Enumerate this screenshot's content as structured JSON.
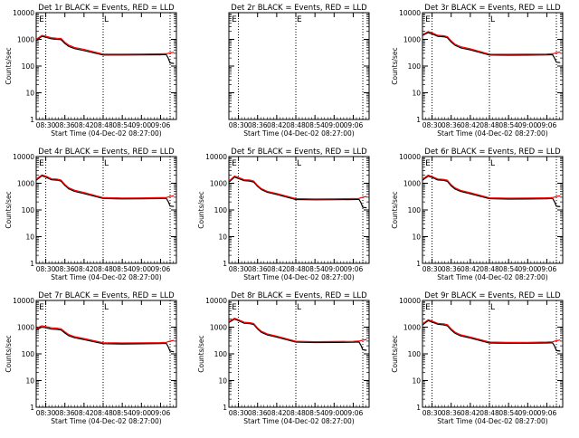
{
  "figure": {
    "xlabel": "Start Time (04-Dec-02 08:27:00)",
    "ylabel": "Counts/sec",
    "colors": {
      "events": "#000000",
      "lld": "#ff0000",
      "axis": "#000000",
      "background": "#ffffff"
    }
  },
  "chart_data": [
    {
      "type": "line",
      "title": "Det 1r BLACK = Events, RED = LLD",
      "xlabel": "Start Time (04-Dec-02 08:27:00)",
      "ylabel": "Counts/sec",
      "yscale": "log",
      "ylim": [
        1,
        10000
      ],
      "xlim": [
        8.45,
        9.183
      ],
      "xtick_labels": [
        "08:30",
        "08:36",
        "08:42",
        "08:48",
        "08:54",
        "09:00",
        "09:06"
      ],
      "ytick_labels": [
        "1",
        "10",
        "100",
        "1000",
        "10000"
      ],
      "vlines": [
        8.5,
        8.8,
        9.15
      ],
      "markers": [
        "E",
        "L"
      ],
      "x": [
        8.45,
        8.48,
        8.5,
        8.53,
        8.56,
        8.58,
        8.6,
        8.62,
        8.65,
        8.7,
        8.8,
        8.9,
        9.0,
        9.1,
        9.13,
        9.14,
        9.15,
        9.17
      ],
      "series": [
        {
          "name": "Events",
          "values": [
            900,
            1300,
            1200,
            1050,
            1000,
            980,
            700,
            550,
            450,
            380,
            260,
            260,
            262,
            265,
            270,
            200,
            130,
            125
          ]
        },
        {
          "name": "LLD",
          "values": [
            1000,
            1400,
            1300,
            1150,
            1100,
            1080,
            780,
            610,
            500,
            420,
            280,
            280,
            283,
            286,
            290,
            300,
            310,
            330
          ]
        }
      ]
    },
    {
      "type": "line",
      "title": "Det 2r BLACK = Events, RED = LLD",
      "xlabel": "Start Time (04-Dec-02 08:27:00)",
      "ylabel": "",
      "yscale": "log",
      "ylim": [
        1,
        10000
      ],
      "xlim": [
        8.45,
        9.183
      ],
      "xtick_labels": [
        "08:30",
        "08:36",
        "08:42",
        "08:48",
        "08:54",
        "09:00",
        "09:06"
      ],
      "ytick_labels": [],
      "vlines": [
        8.5,
        8.8,
        9.15
      ],
      "markers": [
        "E",
        "E"
      ],
      "x": [],
      "series": []
    },
    {
      "type": "line",
      "title": "Det 3r BLACK = Events, RED = LLD",
      "xlabel": "Start Time (04-Dec-02 08:27:00)",
      "ylabel": "Counts/sec",
      "yscale": "log",
      "ylim": [
        1,
        10000
      ],
      "xlim": [
        8.45,
        9.183
      ],
      "xtick_labels": [
        "08:30",
        "08:36",
        "08:42",
        "08:48",
        "08:54",
        "09:00",
        "09:06"
      ],
      "ytick_labels": [
        "1",
        "10",
        "100",
        "1000",
        "10000"
      ],
      "vlines": [
        8.5,
        8.8,
        9.15
      ],
      "markers": [
        "E",
        "L"
      ],
      "x": [
        8.45,
        8.48,
        8.5,
        8.53,
        8.56,
        8.58,
        8.6,
        8.62,
        8.65,
        8.7,
        8.8,
        8.9,
        9.0,
        9.1,
        9.13,
        9.14,
        9.15,
        9.17
      ],
      "series": [
        {
          "name": "Events",
          "values": [
            1400,
            1800,
            1600,
            1300,
            1250,
            1150,
            800,
            600,
            480,
            400,
            260,
            255,
            258,
            262,
            268,
            200,
            140,
            135
          ]
        },
        {
          "name": "LLD",
          "values": [
            1500,
            1950,
            1750,
            1420,
            1370,
            1260,
            880,
            660,
            530,
            440,
            280,
            275,
            278,
            282,
            288,
            300,
            315,
            335
          ]
        }
      ]
    },
    {
      "type": "line",
      "title": "Det 4r BLACK = Events, RED = LLD",
      "xlabel": "Start Time (04-Dec-02 08:27:00)",
      "ylabel": "Counts/sec",
      "yscale": "log",
      "ylim": [
        1,
        10000
      ],
      "xlim": [
        8.45,
        9.183
      ],
      "xtick_labels": [
        "08:30",
        "08:36",
        "08:42",
        "08:48",
        "08:54",
        "09:00",
        "09:06"
      ],
      "ytick_labels": [
        "1",
        "10",
        "100",
        "1000",
        "10000"
      ],
      "vlines": [
        8.5,
        8.8,
        9.15
      ],
      "markers": [
        "E",
        "L"
      ],
      "x": [
        8.45,
        8.48,
        8.5,
        8.53,
        8.56,
        8.58,
        8.6,
        8.62,
        8.65,
        8.7,
        8.8,
        8.9,
        9.0,
        9.1,
        9.13,
        9.14,
        9.15,
        9.17
      ],
      "series": [
        {
          "name": "Events",
          "values": [
            1300,
            1900,
            1700,
            1350,
            1300,
            1200,
            820,
            620,
            500,
            410,
            270,
            260,
            262,
            268,
            272,
            210,
            140,
            135
          ]
        },
        {
          "name": "LLD",
          "values": [
            1420,
            2050,
            1850,
            1470,
            1420,
            1310,
            900,
            680,
            550,
            450,
            290,
            280,
            283,
            288,
            292,
            305,
            320,
            340
          ]
        }
      ]
    },
    {
      "type": "line",
      "title": "Det 5r BLACK = Events, RED = LLD",
      "xlabel": "Start Time (04-Dec-02 08:27:00)",
      "ylabel": "Counts/sec",
      "yscale": "log",
      "ylim": [
        1,
        10000
      ],
      "xlim": [
        8.45,
        9.183
      ],
      "xtick_labels": [
        "08:30",
        "08:36",
        "08:42",
        "08:48",
        "08:54",
        "09:00",
        "09:06"
      ],
      "ytick_labels": [
        "1",
        "10",
        "100",
        "1000",
        "10000"
      ],
      "vlines": [
        8.5,
        8.8,
        9.15
      ],
      "markers": [
        "E",
        "L"
      ],
      "x": [
        8.45,
        8.48,
        8.5,
        8.53,
        8.56,
        8.58,
        8.6,
        8.62,
        8.65,
        8.7,
        8.8,
        8.9,
        9.0,
        9.1,
        9.13,
        9.14,
        9.15,
        9.17
      ],
      "series": [
        {
          "name": "Events",
          "values": [
            1100,
            1700,
            1500,
            1250,
            1200,
            1100,
            760,
            580,
            460,
            380,
            245,
            240,
            242,
            246,
            250,
            190,
            125,
            120
          ]
        },
        {
          "name": "LLD",
          "values": [
            1200,
            1850,
            1650,
            1360,
            1310,
            1200,
            830,
            630,
            500,
            415,
            265,
            260,
            262,
            266,
            270,
            285,
            300,
            320
          ]
        }
      ]
    },
    {
      "type": "line",
      "title": "Det 6r BLACK = Events, RED = LLD",
      "xlabel": "Start Time (04-Dec-02 08:27:00)",
      "ylabel": "Counts/sec",
      "yscale": "log",
      "ylim": [
        1,
        10000
      ],
      "xlim": [
        8.45,
        9.183
      ],
      "xtick_labels": [
        "08:30",
        "08:36",
        "08:42",
        "08:48",
        "08:54",
        "09:00",
        "09:06"
      ],
      "ytick_labels": [
        "1",
        "10",
        "100",
        "1000",
        "10000"
      ],
      "vlines": [
        8.5,
        8.8,
        9.15
      ],
      "markers": [
        "E",
        "L"
      ],
      "x": [
        8.45,
        8.48,
        8.5,
        8.53,
        8.56,
        8.58,
        8.6,
        8.62,
        8.65,
        8.7,
        8.8,
        8.9,
        9.0,
        9.1,
        9.13,
        9.14,
        9.15,
        9.17
      ],
      "series": [
        {
          "name": "Events",
          "values": [
            1300,
            1850,
            1650,
            1320,
            1280,
            1180,
            800,
            610,
            490,
            400,
            265,
            255,
            258,
            264,
            270,
            205,
            138,
            132
          ]
        },
        {
          "name": "LLD",
          "values": [
            1420,
            2000,
            1800,
            1440,
            1400,
            1290,
            880,
            670,
            540,
            440,
            285,
            275,
            278,
            284,
            290,
            302,
            318,
            338
          ]
        }
      ]
    },
    {
      "type": "line",
      "title": "Det 7r BLACK = Events, RED = LLD",
      "xlabel": "Start Time (04-Dec-02 08:27:00)",
      "ylabel": "Counts/sec",
      "yscale": "log",
      "ylim": [
        1,
        10000
      ],
      "xlim": [
        8.45,
        9.183
      ],
      "xtick_labels": [
        "08:30",
        "08:36",
        "08:42",
        "08:48",
        "08:54",
        "09:00",
        "09:06"
      ],
      "ytick_labels": [
        "1",
        "10",
        "100",
        "1000",
        "10000"
      ],
      "vlines": [
        8.5,
        8.8,
        9.15
      ],
      "markers": [
        "E",
        "L"
      ],
      "x": [
        8.45,
        8.48,
        8.5,
        8.53,
        8.56,
        8.58,
        8.6,
        8.62,
        8.65,
        8.7,
        8.8,
        8.9,
        9.0,
        9.1,
        9.13,
        9.14,
        9.15,
        9.17
      ],
      "series": [
        {
          "name": "Events",
          "values": [
            800,
            1000,
            950,
            850,
            820,
            780,
            600,
            480,
            400,
            340,
            240,
            235,
            238,
            242,
            248,
            185,
            125,
            120
          ]
        },
        {
          "name": "LLD",
          "values": [
            900,
            1120,
            1060,
            950,
            910,
            870,
            670,
            530,
            440,
            375,
            262,
            256,
            258,
            263,
            270,
            285,
            300,
            320
          ]
        }
      ]
    },
    {
      "type": "line",
      "title": "Det 8r BLACK = Events, RED = LLD",
      "xlabel": "Start Time (04-Dec-02 08:27:00)",
      "ylabel": "Counts/sec",
      "yscale": "log",
      "ylim": [
        1,
        10000
      ],
      "xlim": [
        8.45,
        9.183
      ],
      "xtick_labels": [
        "08:30",
        "08:36",
        "08:42",
        "08:48",
        "08:54",
        "09:00",
        "09:06"
      ],
      "ytick_labels": [
        "1",
        "10",
        "100",
        "1000",
        "10000"
      ],
      "vlines": [
        8.5,
        8.8,
        9.15
      ],
      "markers": [
        "E",
        "L"
      ],
      "x": [
        8.45,
        8.48,
        8.5,
        8.53,
        8.56,
        8.58,
        8.6,
        8.62,
        8.65,
        8.7,
        8.8,
        8.9,
        9.0,
        9.1,
        9.13,
        9.14,
        9.15,
        9.17
      ],
      "series": [
        {
          "name": "Events",
          "values": [
            1500,
            2000,
            1750,
            1400,
            1350,
            1250,
            850,
            640,
            510,
            420,
            275,
            265,
            268,
            272,
            278,
            212,
            142,
            136
          ]
        },
        {
          "name": "LLD",
          "values": [
            1620,
            2150,
            1900,
            1520,
            1470,
            1360,
            930,
            700,
            560,
            460,
            295,
            285,
            288,
            293,
            300,
            312,
            326,
            345
          ]
        }
      ]
    },
    {
      "type": "line",
      "title": "Det 9r BLACK = Events, RED = LLD",
      "xlabel": "Start Time (04-Dec-02 08:27:00)",
      "ylabel": "Counts/sec",
      "yscale": "log",
      "ylim": [
        1,
        10000
      ],
      "xlim": [
        8.45,
        9.183
      ],
      "xtick_labels": [
        "08:30",
        "08:36",
        "08:42",
        "08:48",
        "08:54",
        "09:00",
        "09:06"
      ],
      "ytick_labels": [
        "1",
        "10",
        "100",
        "1000",
        "10000"
      ],
      "vlines": [
        8.5,
        8.8,
        9.15
      ],
      "markers": [
        "E",
        "L"
      ],
      "x": [
        8.45,
        8.48,
        8.5,
        8.53,
        8.56,
        8.58,
        8.6,
        8.62,
        8.65,
        8.7,
        8.8,
        8.9,
        9.0,
        9.1,
        9.13,
        9.14,
        9.15,
        9.17
      ],
      "series": [
        {
          "name": "Events",
          "values": [
            1200,
            1750,
            1550,
            1280,
            1220,
            1120,
            780,
            590,
            470,
            390,
            255,
            248,
            250,
            255,
            260,
            198,
            132,
            127
          ]
        },
        {
          "name": "LLD",
          "values": [
            1310,
            1900,
            1690,
            1390,
            1330,
            1230,
            860,
            650,
            515,
            428,
            275,
            268,
            270,
            275,
            282,
            295,
            310,
            330
          ]
        }
      ]
    }
  ]
}
